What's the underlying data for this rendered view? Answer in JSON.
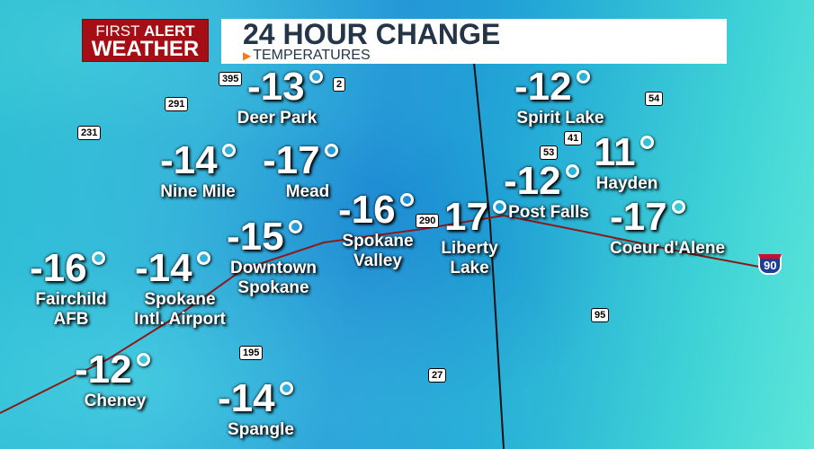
{
  "header": {
    "logo": {
      "line1_a": "FIRST",
      "line1_b": "ALERT",
      "line2": "WEATHER"
    },
    "title": "24 HOUR CHANGE",
    "subtitle": "TEMPERATURES"
  },
  "accent_colors": {
    "logo_bg": "#a50e14",
    "title_text": "#253548",
    "subtitle_marker": "#f47a20"
  },
  "locations": [
    {
      "name": "Deer Park",
      "value": "-13"
    },
    {
      "name": "Spirit Lake",
      "value": "-12"
    },
    {
      "name": "Nine Mile",
      "value": "-14"
    },
    {
      "name": "Mead",
      "value": "-17"
    },
    {
      "name": "Spokane Valley",
      "value": "-16"
    },
    {
      "name": "Liberty Lake",
      "value": "17"
    },
    {
      "name": "Post Falls",
      "value": "-12"
    },
    {
      "name": "Hayden",
      "value": "11"
    },
    {
      "name": "Coeur d'Alene",
      "value": "-17"
    },
    {
      "name": "Downtown Spokane",
      "value": "-15"
    },
    {
      "name": "Fairchild AFB",
      "value": "-16"
    },
    {
      "name": "Spokane Intl. Airport",
      "value": "-14"
    },
    {
      "name": "Cheney",
      "value": "-12"
    },
    {
      "name": "Spangle",
      "value": "-14"
    }
  ],
  "highway_shields": [
    "395",
    "2",
    "291",
    "231",
    "41",
    "53",
    "54",
    "290",
    "90",
    "95",
    "195",
    "27"
  ]
}
